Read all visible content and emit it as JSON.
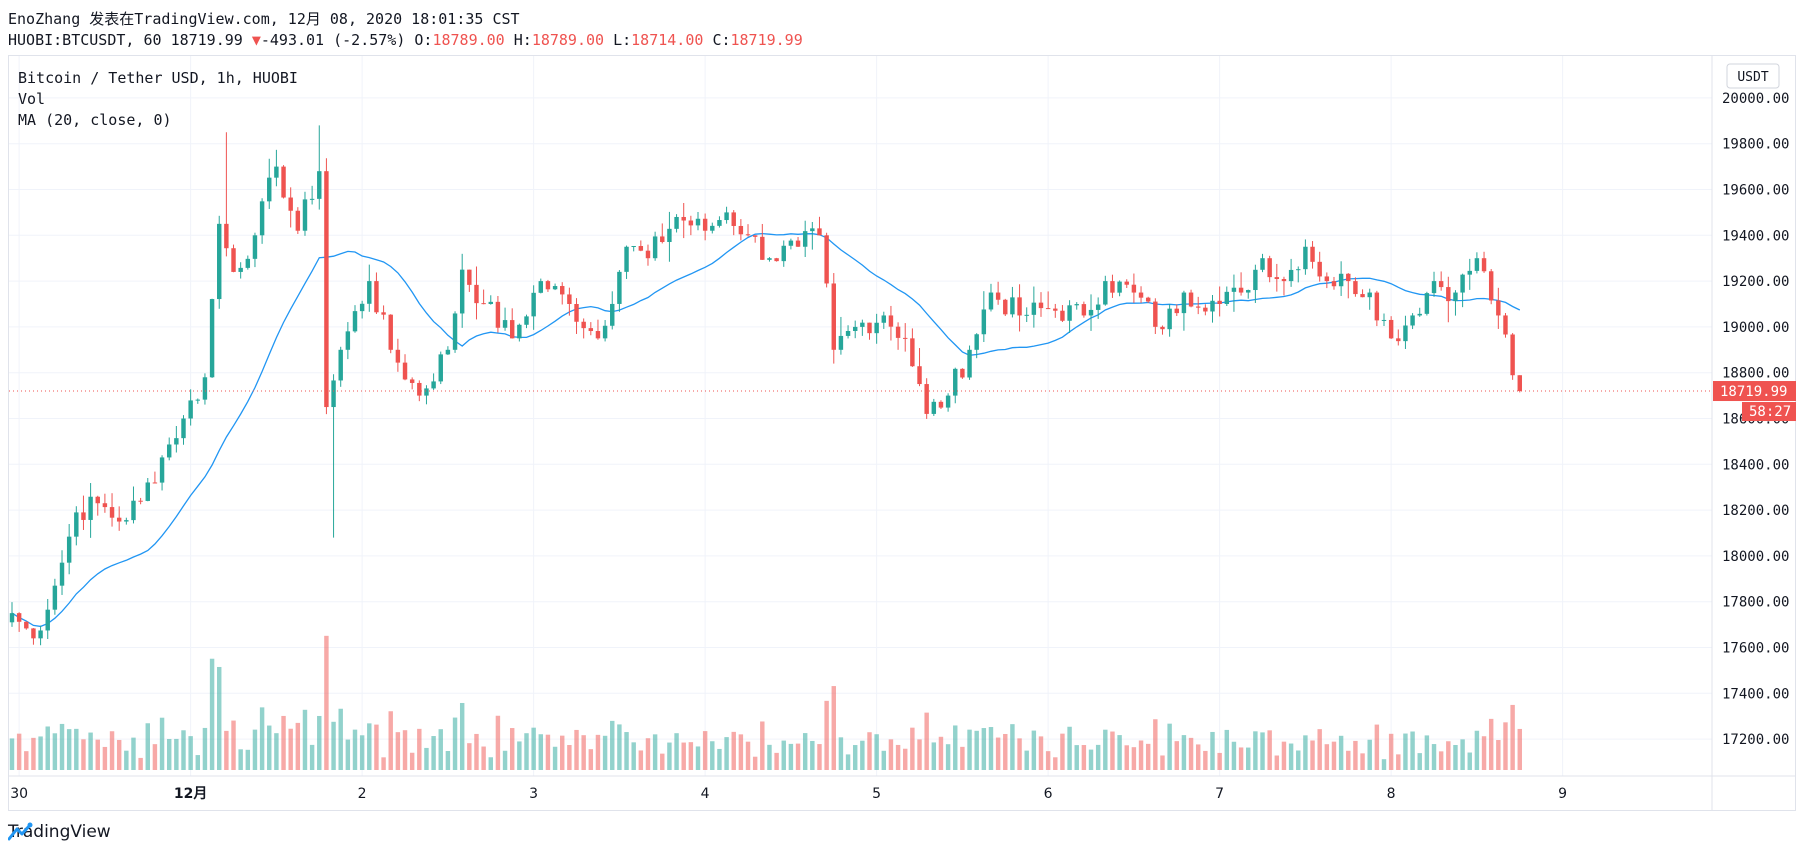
{
  "header": {
    "line1": "EnoZhang 发表在TradingView.com, 12月 08, 2020 18:01:35 CST",
    "symbol": "HUOBI:BTCUSDT, 60",
    "last": "18719.99",
    "change_arrow": "▼",
    "change": "-493.01 (-2.57%)",
    "o_label": "O:",
    "o_val": "18789.00",
    "h_label": "H:",
    "h_val": "18789.00",
    "l_label": "L:",
    "l_val": "18714.00",
    "c_label": "C:",
    "c_val": "18719.99"
  },
  "legend": {
    "title": "Bitcoin / Tether USD, 1h, HUOBI",
    "vol": "Vol",
    "ma": "MA (20, close, 0)"
  },
  "currency_button": "USDT",
  "price_tag": "18719.99",
  "countdown_tag": "58:27",
  "footer_brand": "TradingView",
  "colors": {
    "up": "#26a69a",
    "down": "#ef5350",
    "ma": "#2196f3",
    "grid": "#f0f3fa"
  },
  "chart_data": {
    "type": "candlestick",
    "title": "Bitcoin / Tether USD, 1h, HUOBI",
    "y_axis": {
      "min": 17100,
      "max": 20100,
      "ticks": [
        17200,
        17400,
        17600,
        17800,
        18000,
        18200,
        18400,
        18600,
        18800,
        19000,
        19200,
        19400,
        19600,
        19800,
        20000
      ],
      "unit": "USDT"
    },
    "x_axis": {
      "ticks": [
        "30",
        "12月",
        "2",
        "3",
        "4",
        "5",
        "6",
        "7",
        "8",
        "9"
      ]
    },
    "last_price": 18719.99,
    "series": [
      {
        "name": "Vol",
        "type": "volume",
        "relative_levels": "derived per candle"
      },
      {
        "name": "MA (20, close, 0)",
        "type": "line"
      }
    ],
    "anchors_close": [
      [
        "11-29 23:00",
        17750
      ],
      [
        "11-30 02:00",
        17640
      ],
      [
        "11-30 05:00",
        17870
      ],
      [
        "11-30 08:00",
        18190
      ],
      [
        "11-30 11:00",
        18230
      ],
      [
        "11-30 14:00",
        18150
      ],
      [
        "11-30 17:00",
        18240
      ],
      [
        "11-30 20:00",
        18430
      ],
      [
        "11-30 23:00",
        18600
      ],
      [
        "12-01 02:00",
        18780
      ],
      [
        "12-01 04:00",
        19450
      ],
      [
        "12-01 06:00",
        19240
      ],
      [
        "12-01 09:00",
        19400
      ],
      [
        "12-01 12:00",
        19700
      ],
      [
        "12-01 15:00",
        19420
      ],
      [
        "12-01 18:00",
        19680
      ],
      [
        "12-01 19:00",
        18650
      ],
      [
        "12-01 21:00",
        18900
      ],
      [
        "12-02 01:00",
        19200
      ],
      [
        "12-02 04:00",
        18900
      ],
      [
        "12-02 08:00",
        18700
      ],
      [
        "12-02 12:00",
        18900
      ],
      [
        "12-02 14:00",
        19250
      ],
      [
        "12-02 17:00",
        19100
      ],
      [
        "12-02 21:00",
        18950
      ],
      [
        "12-03 01:00",
        19200
      ],
      [
        "12-03 05:00",
        19100
      ],
      [
        "12-03 09:00",
        18950
      ],
      [
        "12-03 13:00",
        19350
      ],
      [
        "12-03 16:00",
        19300
      ],
      [
        "12-03 20:00",
        19480
      ],
      [
        "12-04 00:00",
        19420
      ],
      [
        "12-04 03:00",
        19500
      ],
      [
        "12-04 06:00",
        19400
      ],
      [
        "12-04 09:00",
        19300
      ],
      [
        "12-04 13:00",
        19350
      ],
      [
        "12-04 16:00",
        19400
      ],
      [
        "12-04 18:00",
        18900
      ],
      [
        "12-04 21:00",
        19000
      ],
      [
        "12-05 01:00",
        19050
      ],
      [
        "12-05 04:00",
        18950
      ],
      [
        "12-05 07:00",
        18620
      ],
      [
        "12-05 10:00",
        18700
      ],
      [
        "12-05 13:00",
        18900
      ],
      [
        "12-05 16:00",
        19150
      ],
      [
        "12-05 20:00",
        19050
      ],
      [
        "12-06 00:00",
        19080
      ],
      [
        "12-06 05:00",
        19050
      ],
      [
        "12-06 08:00",
        19200
      ],
      [
        "12-06 12:00",
        19150
      ],
      [
        "12-06 16:00",
        18990
      ],
      [
        "12-06 19:00",
        19150
      ],
      [
        "12-07 00:00",
        19100
      ],
      [
        "12-07 03:00",
        19150
      ],
      [
        "12-07 06:00",
        19300
      ],
      [
        "12-07 09:00",
        19200
      ],
      [
        "12-07 12:00",
        19350
      ],
      [
        "12-07 15:00",
        19200
      ],
      [
        "12-07 18:00",
        19200
      ],
      [
        "12-07 21:00",
        19150
      ],
      [
        "12-08 00:00",
        18950
      ],
      [
        "12-08 03:00",
        19050
      ],
      [
        "12-08 06:00",
        19200
      ],
      [
        "12-08 09:00",
        19150
      ],
      [
        "12-08 12:00",
        19300
      ],
      [
        "12-08 15:00",
        19050
      ],
      [
        "12-08 17:00",
        18789
      ],
      [
        "12-08 18:00",
        18720
      ]
    ]
  }
}
